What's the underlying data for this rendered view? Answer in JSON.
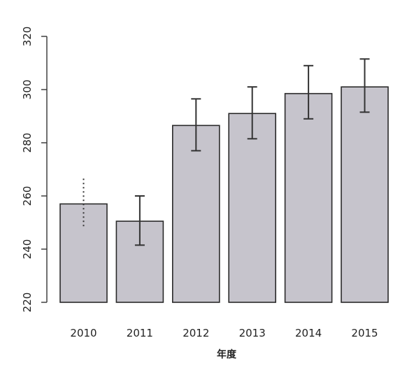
{
  "chart_data": {
    "type": "bar",
    "categories": [
      "2010",
      "2011",
      "2012",
      "2013",
      "2014",
      "2015"
    ],
    "values": [
      257,
      250.5,
      286.5,
      291,
      298.5,
      301
    ],
    "error_low": [
      248,
      241.5,
      277,
      281.5,
      289,
      291.5
    ],
    "error_high": [
      266.5,
      260,
      296.5,
      301,
      309,
      311.5
    ],
    "error_style": [
      "dotted",
      "solid",
      "solid",
      "solid",
      "solid",
      "solid"
    ],
    "xlabel": "年度",
    "ylabel": "",
    "ylim": [
      220,
      320
    ],
    "yticks": [
      220,
      240,
      260,
      280,
      300,
      320
    ],
    "bar_color": "#c6c4cc",
    "grid": false,
    "legend": "none"
  }
}
